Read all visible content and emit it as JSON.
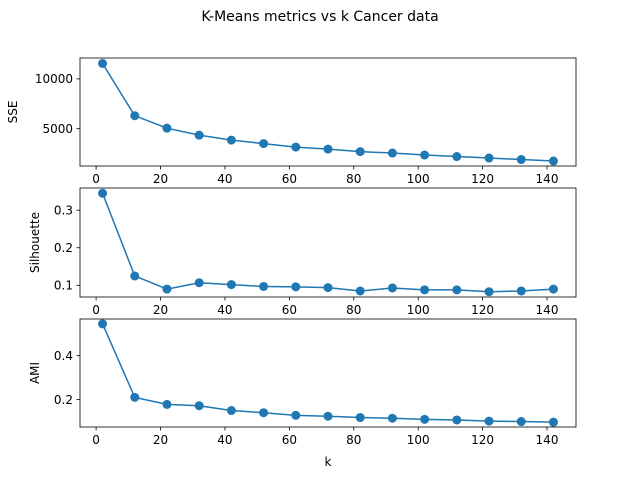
{
  "figure": {
    "title": "K-Means metrics vs k Cancer data"
  },
  "colors": {
    "series": "#1f77b4"
  },
  "chart_data": [
    {
      "type": "line",
      "ylabel": "SSE",
      "xlabel": "",
      "x": [
        2,
        12,
        22,
        32,
        42,
        52,
        62,
        72,
        82,
        92,
        102,
        112,
        122,
        132,
        142
      ],
      "values": [
        11550,
        6300,
        5050,
        4350,
        3850,
        3500,
        3150,
        2950,
        2700,
        2550,
        2350,
        2200,
        2050,
        1900,
        1750
      ],
      "xlim": [
        -5,
        149
      ],
      "ylim": [
        1250,
        12100
      ],
      "xticks": [
        0,
        20,
        40,
        60,
        80,
        100,
        120,
        140
      ],
      "yticks": [
        5000,
        10000
      ],
      "marker": "circle",
      "grid": false
    },
    {
      "type": "line",
      "ylabel": "Silhouette",
      "xlabel": "",
      "x": [
        2,
        12,
        22,
        32,
        42,
        52,
        62,
        72,
        82,
        92,
        102,
        112,
        122,
        132,
        142
      ],
      "values": [
        0.345,
        0.125,
        0.09,
        0.107,
        0.102,
        0.097,
        0.096,
        0.094,
        0.085,
        0.093,
        0.088,
        0.088,
        0.083,
        0.085,
        0.09
      ],
      "xlim": [
        -5,
        149
      ],
      "ylim": [
        0.069,
        0.359
      ],
      "xticks": [
        0,
        20,
        40,
        60,
        80,
        100,
        120,
        140
      ],
      "yticks": [
        0.1,
        0.2,
        0.3
      ],
      "marker": "circle",
      "grid": false
    },
    {
      "type": "line",
      "ylabel": "AMI",
      "xlabel": "k",
      "x": [
        2,
        12,
        22,
        32,
        42,
        52,
        62,
        72,
        82,
        92,
        102,
        112,
        122,
        132,
        142
      ],
      "values": [
        0.545,
        0.21,
        0.178,
        0.172,
        0.15,
        0.14,
        0.128,
        0.124,
        0.118,
        0.115,
        0.11,
        0.107,
        0.102,
        0.1,
        0.097
      ],
      "xlim": [
        -5,
        149
      ],
      "ylim": [
        0.075,
        0.567
      ],
      "xticks": [
        0,
        20,
        40,
        60,
        80,
        100,
        120,
        140
      ],
      "yticks": [
        0.2,
        0.4
      ],
      "marker": "circle",
      "grid": false
    }
  ]
}
